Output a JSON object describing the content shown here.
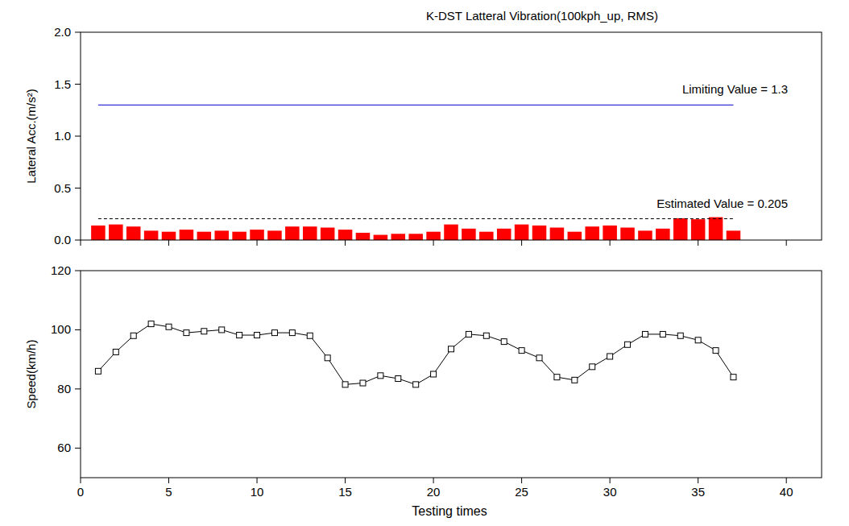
{
  "chart_data": [
    {
      "type": "bar",
      "title": "K-DST Latteral Vibration(100kph_up, RMS)",
      "y_label": "Lateral Acc.(m/s²)",
      "x": [
        1,
        2,
        3,
        4,
        5,
        6,
        7,
        8,
        9,
        10,
        11,
        12,
        13,
        14,
        15,
        16,
        17,
        18,
        19,
        20,
        21,
        22,
        23,
        24,
        25,
        26,
        27,
        28,
        29,
        30,
        31,
        32,
        33,
        34,
        35,
        36,
        37
      ],
      "values": [
        0.14,
        0.15,
        0.13,
        0.09,
        0.08,
        0.1,
        0.08,
        0.09,
        0.08,
        0.1,
        0.09,
        0.13,
        0.13,
        0.12,
        0.1,
        0.07,
        0.05,
        0.06,
        0.06,
        0.08,
        0.15,
        0.11,
        0.08,
        0.11,
        0.15,
        0.14,
        0.12,
        0.08,
        0.13,
        0.14,
        0.12,
        0.09,
        0.11,
        0.21,
        0.2,
        0.22,
        0.09
      ],
      "color": "#ff0000",
      "xlim": [
        0,
        42
      ],
      "xticks": [
        0,
        5,
        10,
        15,
        20,
        25,
        30,
        35,
        40
      ],
      "ylim": [
        0,
        2
      ],
      "yticks": [
        {
          "value": 0,
          "label": "0.0"
        },
        {
          "value": 0.5,
          "label": "0.5"
        },
        {
          "value": 1,
          "label": "1.0"
        },
        {
          "value": 1.5,
          "label": "1.5"
        },
        {
          "value": 2,
          "label": "2.0"
        }
      ],
      "tick_labels": "y",
      "reference_lines": [
        {
          "value": 1.3,
          "label": "Limiting Value = 1.3",
          "color": "#0000cc",
          "line_style": "solid"
        },
        {
          "value": 0.205,
          "label": "Estimated Value = 0.205",
          "color": "#000000",
          "line_style": "dashed"
        }
      ]
    },
    {
      "type": "line",
      "x_label": "Testing times",
      "y_label": "Speed(km/h)",
      "x": [
        1,
        2,
        3,
        4,
        5,
        6,
        7,
        8,
        9,
        10,
        11,
        12,
        13,
        14,
        15,
        16,
        17,
        18,
        19,
        20,
        21,
        22,
        23,
        24,
        25,
        26,
        27,
        28,
        29,
        30,
        31,
        32,
        33,
        34,
        35,
        36,
        37
      ],
      "values": [
        86,
        92.5,
        98,
        102,
        101,
        99,
        99.5,
        100,
        98.2,
        98.2,
        99,
        99,
        98,
        90.5,
        81.5,
        82,
        84.5,
        83.5,
        81.5,
        85,
        93.5,
        98.5,
        98,
        96,
        93,
        90.5,
        84,
        83,
        87.5,
        91,
        95,
        98.5,
        98.5,
        98,
        96.5,
        93,
        84
      ],
      "color": "#000000",
      "marker": "square",
      "xlim": [
        0,
        42
      ],
      "xticks": [
        0,
        5,
        10,
        15,
        20,
        25,
        30,
        35,
        40
      ],
      "ylim": [
        50,
        120
      ],
      "yticks": [
        60,
        80,
        100,
        120
      ]
    }
  ]
}
